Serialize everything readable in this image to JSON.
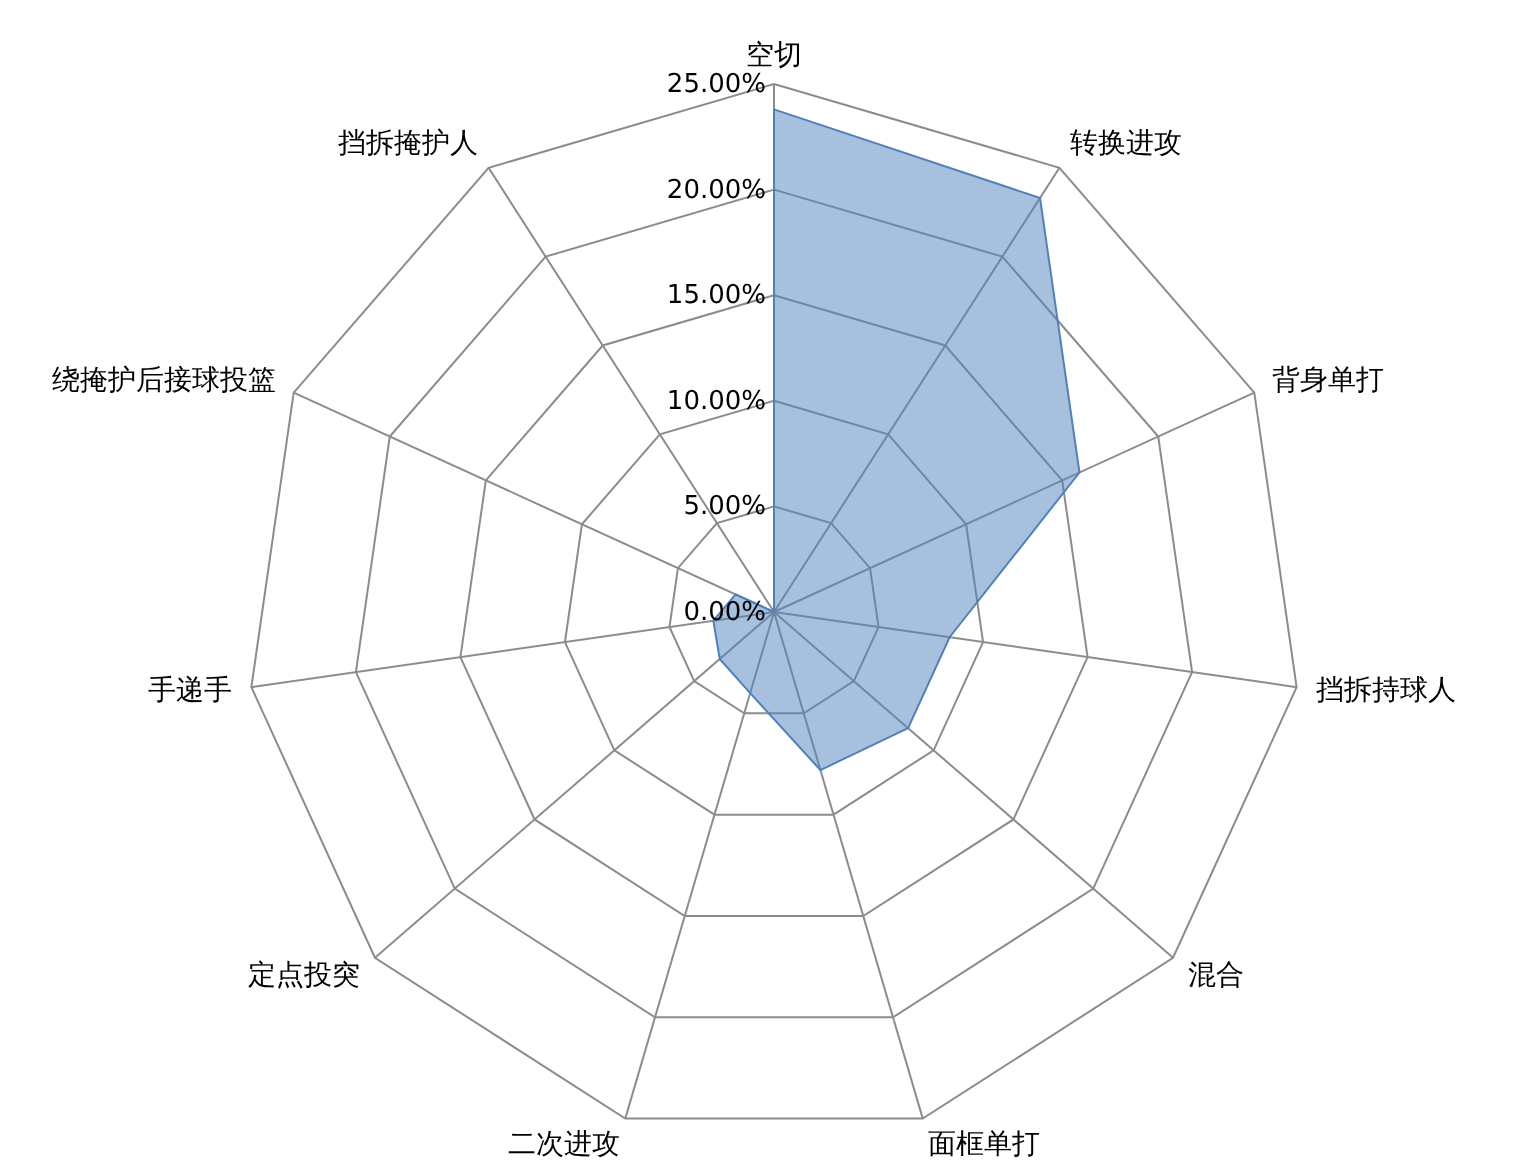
{
  "chart_data": {
    "type": "radar",
    "categories": [
      "空切",
      "转换进攻",
      "背身单打",
      "挡拆持球人",
      "混合",
      "面框单打",
      "二次进攻",
      "定点投突",
      "手递手",
      "绕掩护后接球投篮",
      "挡拆掩护人"
    ],
    "series": [
      {
        "color": "#4f81bd",
        "values": [
          23.8,
          23.3,
          15.9,
          8.4,
          8.4,
          7.8,
          4.0,
          3.4,
          2.9,
          2.0,
          0
        ]
      }
    ],
    "ylim": [
      0,
      25
    ],
    "yticks": [
      {
        "value": 0,
        "label": "0.00%"
      },
      {
        "value": 5,
        "label": "5.00%"
      },
      {
        "value": 10,
        "label": "10.00%"
      },
      {
        "value": 15,
        "label": "15.00%"
      },
      {
        "value": 20,
        "label": "20.00%"
      },
      {
        "value": 25,
        "label": "25.00%"
      }
    ],
    "grid": true
  }
}
